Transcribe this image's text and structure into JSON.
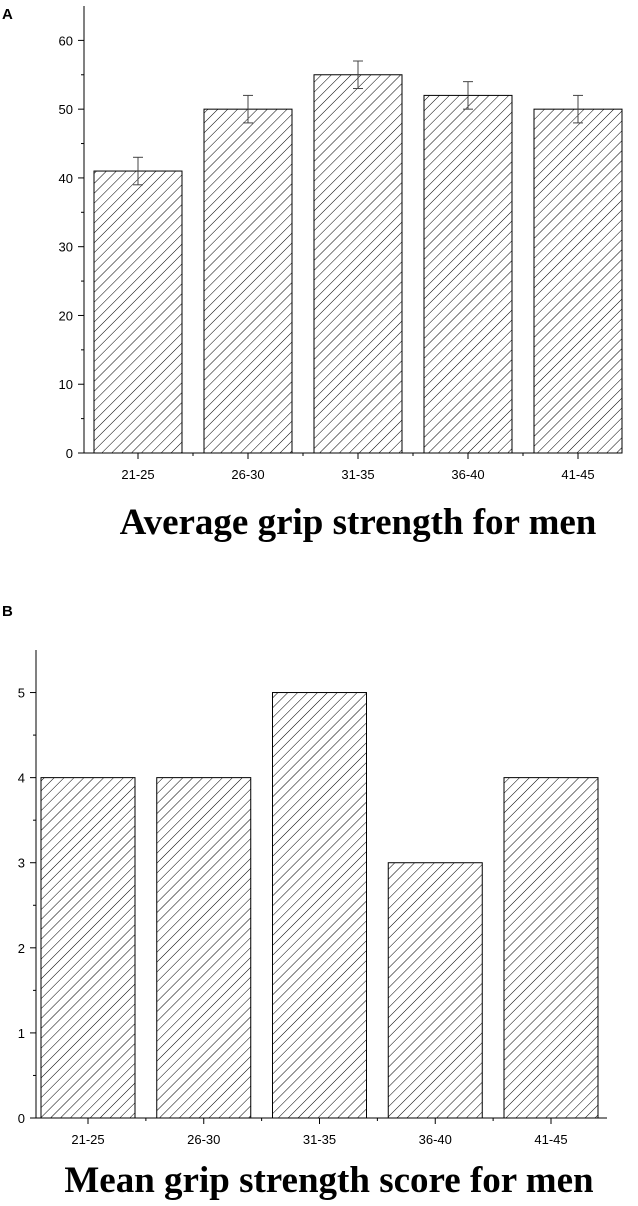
{
  "chart_data": [
    {
      "panel_label": "A",
      "type": "bar",
      "categories": [
        "21-25",
        "26-30",
        "31-35",
        "36-40",
        "41-45"
      ],
      "values": [
        41,
        50,
        55,
        52,
        50
      ],
      "error": [
        2,
        2,
        2,
        2,
        2
      ],
      "yticks": [
        0,
        10,
        20,
        30,
        40,
        50,
        60
      ],
      "ylim": [
        0,
        65
      ],
      "title": "Average grip strength for men",
      "xlabel": "",
      "ylabel": "",
      "grid": false,
      "bar_fill": "diagonal-hatch"
    },
    {
      "panel_label": "B",
      "type": "bar",
      "categories": [
        "21-25",
        "26-30",
        "31-35",
        "36-40",
        "41-45"
      ],
      "values": [
        4,
        4,
        5,
        3,
        4
      ],
      "yticks": [
        0,
        1,
        2,
        3,
        4,
        5
      ],
      "ylim": [
        0,
        5.5
      ],
      "title": "Mean grip strength score for men",
      "xlabel": "",
      "ylabel": "",
      "grid": false,
      "bar_fill": "diagonal-hatch"
    }
  ],
  "colors": {
    "bar_stroke": "#000000",
    "hatch": "#000000",
    "axis": "#000000"
  }
}
